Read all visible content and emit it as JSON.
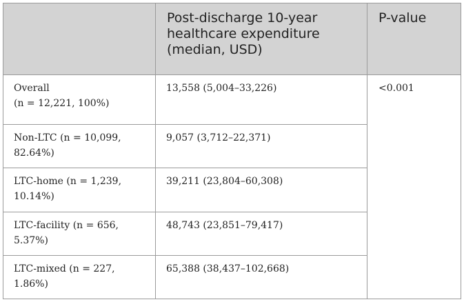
{
  "header": {
    "col1": "",
    "col2_line1": "Post-discharge 10-year",
    "col2_line2": "healthcare expenditure",
    "col2_line3": "(median, USD)",
    "col3": "P-value"
  },
  "rows": [
    {
      "label_line1": "Overall",
      "label_line2": "(n = 12,221, 100%)",
      "value": "13,558 (5,004–33,226)"
    },
    {
      "label_line1": "Non-LTC (n = 10,099,",
      "label_line2": "82.64%)",
      "value": "9,057 (3,712–22,371)"
    },
    {
      "label_line1": "LTC-home (n = 1,239,",
      "label_line2": "10.14%)",
      "value": "39,211 (23,804–60,308)"
    },
    {
      "label_line1": "LTC-facility (n = 656,",
      "label_line2": "5.37%)",
      "value": "48,743 (23,851–79,417)"
    },
    {
      "label_line1": "LTC-mixed (n = 227,",
      "label_line2": "1.86%)",
      "value": "65,388 (38,437–102,668)"
    }
  ],
  "p_value": "<0.001"
}
